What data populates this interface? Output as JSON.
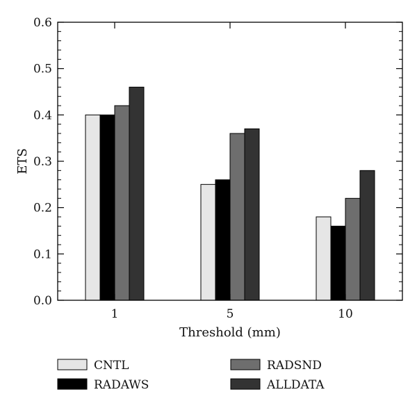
{
  "chart_data": {
    "type": "bar",
    "title": "",
    "xlabel": "Threshold (mm)",
    "ylabel": "ETS",
    "categories": [
      "1",
      "5",
      "10"
    ],
    "ylim": [
      0,
      0.6
    ],
    "yticks": [
      "0.0",
      "0.1",
      "0.2",
      "0.3",
      "0.4",
      "0.5",
      "0.6"
    ],
    "grid": false,
    "legend_position": "bottom",
    "series": [
      {
        "name": "CNTL",
        "color": "#e6e6e6",
        "values": [
          0.4,
          0.25,
          0.18
        ]
      },
      {
        "name": "RADAWS",
        "color": "#000000",
        "values": [
          0.4,
          0.26,
          0.16
        ]
      },
      {
        "name": "RADSND",
        "color": "#6e6e6e",
        "values": [
          0.42,
          0.36,
          0.22
        ]
      },
      {
        "name": "ALLDATA",
        "color": "#333333",
        "values": [
          0.46,
          0.37,
          0.28
        ]
      }
    ]
  }
}
